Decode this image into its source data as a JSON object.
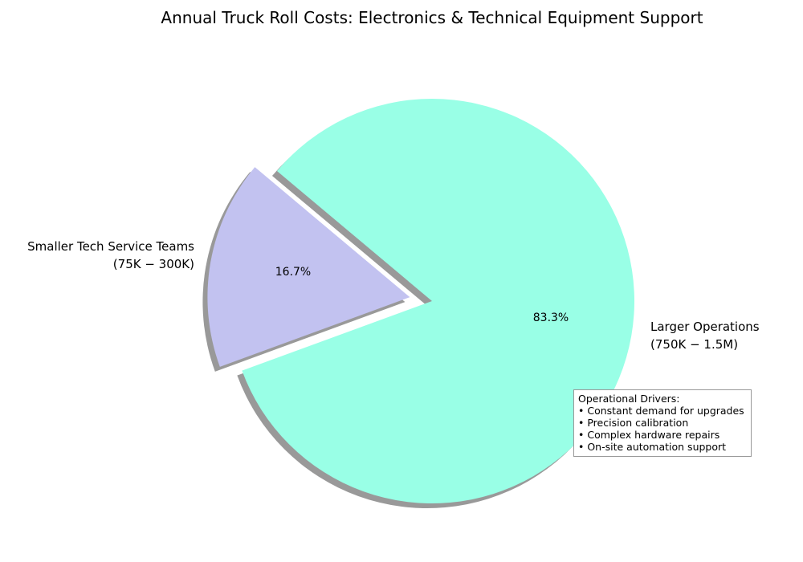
{
  "chart_data": {
    "type": "pie",
    "title": "Annual Truck Roll Costs: Electronics & Technical Equipment Support",
    "slices": [
      {
        "label_line1": "Smaller Tech Service Teams",
        "label_line2": "(75K − 300K)",
        "value": 16.7,
        "percent_label": "16.7%",
        "color": "#c2c2f0",
        "exploded": true
      },
      {
        "label_line1": "Larger Operations",
        "label_line2": "(750K − 1.5M)",
        "value": 83.3,
        "percent_label": "83.3%",
        "color": "#99ffe6",
        "exploded": false
      }
    ],
    "shadow": true,
    "start_angle_deg": 140,
    "direction": "counterclockwise"
  },
  "annotation": {
    "heading": "Operational Drivers:",
    "items": [
      "• Constant demand for upgrades",
      "• Precision calibration",
      "• Complex hardware repairs",
      "• On-site automation support"
    ]
  }
}
